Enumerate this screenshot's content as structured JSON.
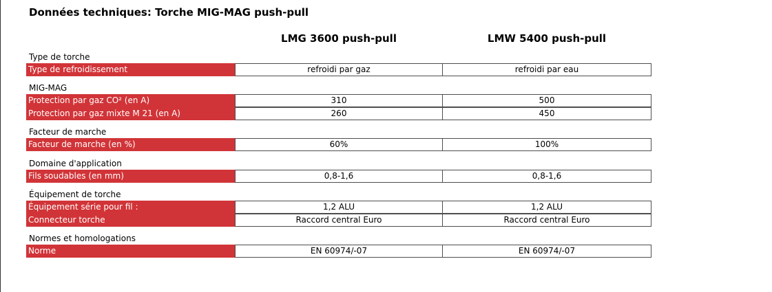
{
  "title": "Données techniques: Torche MIG-MAG push-pull",
  "models": [
    "LMG 3600 push-pull",
    "LMW 5400 push-pull"
  ],
  "sections": [
    {
      "title": "Type de torche",
      "rows": [
        {
          "label": "Type de refroidissement",
          "values": [
            "refroidi par gaz",
            "refroidi par eau"
          ]
        }
      ]
    },
    {
      "title": "MIG-MAG",
      "rows": [
        {
          "label": "Protection par gaz CO² (en A)",
          "values": [
            "310",
            "500"
          ]
        },
        {
          "label": "Protection par gaz mixte M 21 (en A)",
          "values": [
            "260",
            "450"
          ]
        }
      ]
    },
    {
      "title": "Facteur de marche",
      "rows": [
        {
          "label": "Facteur de marche (en %)",
          "values": [
            "60%",
            "100%"
          ]
        }
      ]
    },
    {
      "title": "Domaine d'application",
      "rows": [
        {
          "label": "Fils soudables (en mm)",
          "values": [
            "0,8-1,6",
            "0,8-1,6"
          ]
        }
      ]
    },
    {
      "title": "Équipement de torche",
      "rows": [
        {
          "label": "Équipement série pour fil :",
          "values": [
            "1,2 ALU",
            "1,2 ALU"
          ]
        },
        {
          "label": "Connecteur torche",
          "values": [
            "Raccord central Euro",
            "Raccord central Euro"
          ]
        }
      ]
    },
    {
      "title": "Normes et homologations",
      "rows": [
        {
          "label": "Norme",
          "values": [
            "EN 60974/-07",
            "EN 60974/-07"
          ]
        }
      ]
    }
  ],
  "colors": {
    "label_background": "#d13438",
    "label_text": "#ffffff",
    "cell_border": "#4d4d4d"
  }
}
